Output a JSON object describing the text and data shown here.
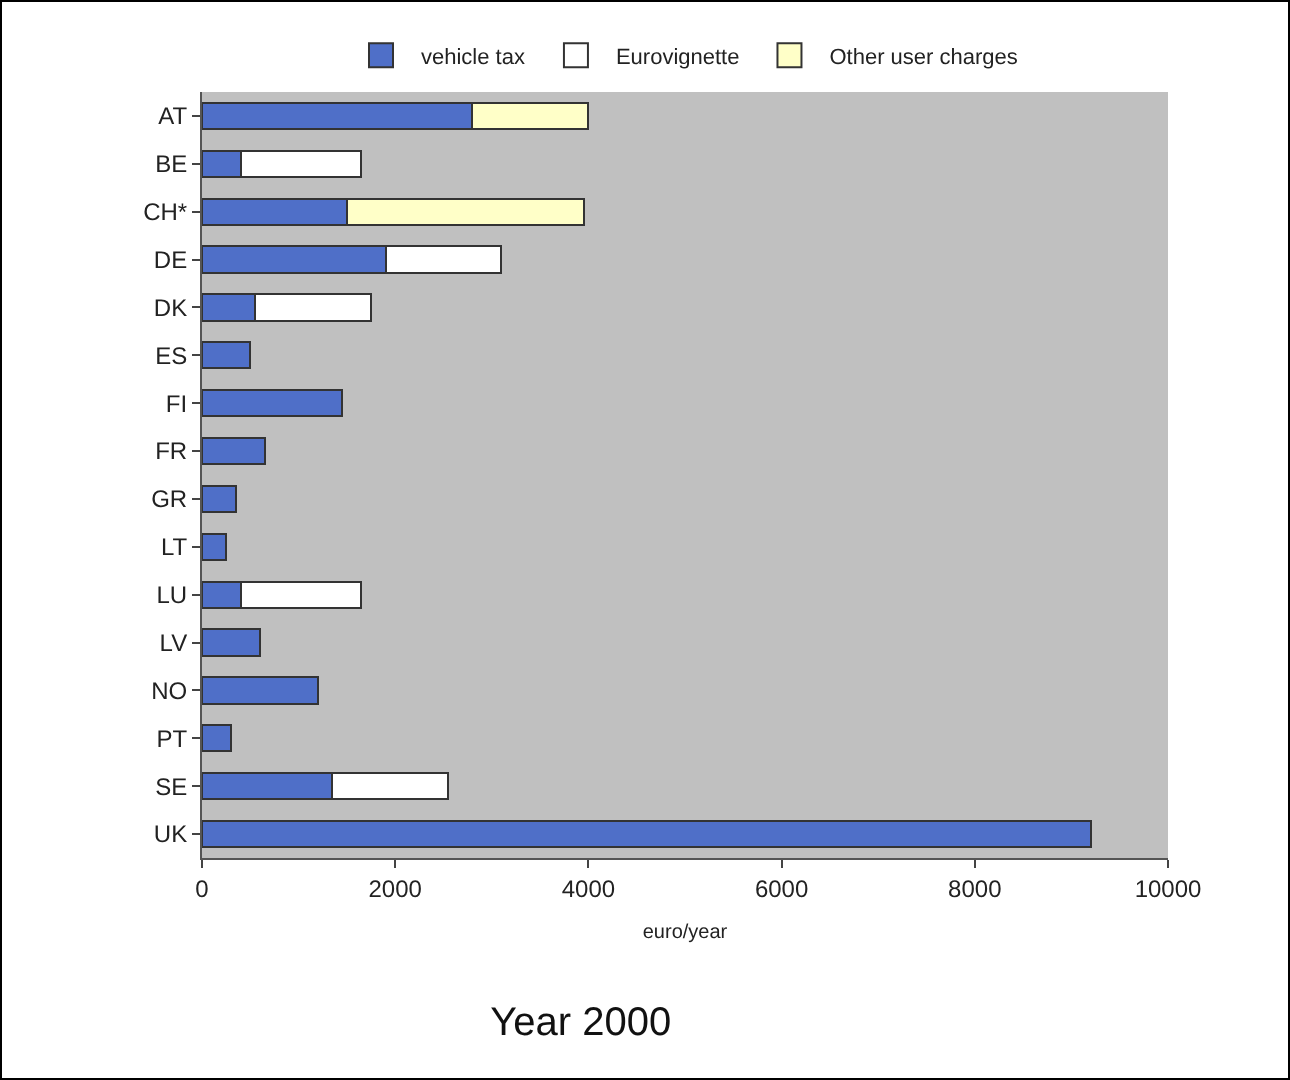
{
  "chart_data": {
    "type": "bar",
    "orientation": "horizontal",
    "stacked": true,
    "title": "Year 2000",
    "xlabel": "euro/year",
    "categories": [
      "AT",
      "BE",
      "CH*",
      "DE",
      "DK",
      "ES",
      "FI",
      "FR",
      "GR",
      "LT",
      "LU",
      "LV",
      "NO",
      "PT",
      "SE",
      "UK"
    ],
    "series": [
      {
        "name": "vehicle tax",
        "color": "#4f6fc8",
        "values": [
          2800,
          400,
          1500,
          1900,
          550,
          500,
          1450,
          650,
          350,
          250,
          400,
          600,
          1200,
          300,
          1350,
          9200
        ]
      },
      {
        "name": "Eurovignette",
        "color": "#ffffff",
        "values": [
          null,
          1250,
          null,
          1200,
          1200,
          null,
          null,
          null,
          null,
          null,
          1250,
          null,
          null,
          null,
          1200,
          null
        ]
      },
      {
        "name": "Other user charges",
        "color": "#ffffc8",
        "values": [
          1200,
          null,
          2450,
          null,
          null,
          null,
          null,
          null,
          null,
          null,
          null,
          null,
          null,
          null,
          null,
          null
        ]
      }
    ],
    "xlim": [
      0,
      10000
    ],
    "xticks": [
      0,
      2000,
      4000,
      6000,
      8000,
      10000
    ],
    "grid": false,
    "legend": "top"
  }
}
